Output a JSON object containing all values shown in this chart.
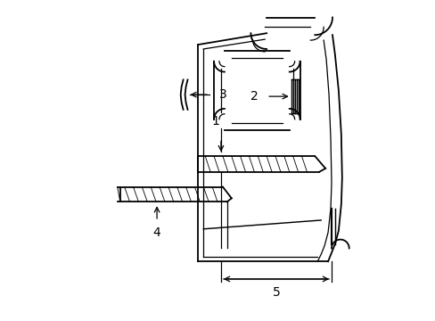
{
  "background_color": "#ffffff",
  "line_color": "#000000",
  "fig_width": 4.89,
  "fig_height": 3.6,
  "dpi": 100,
  "font_size": 10
}
